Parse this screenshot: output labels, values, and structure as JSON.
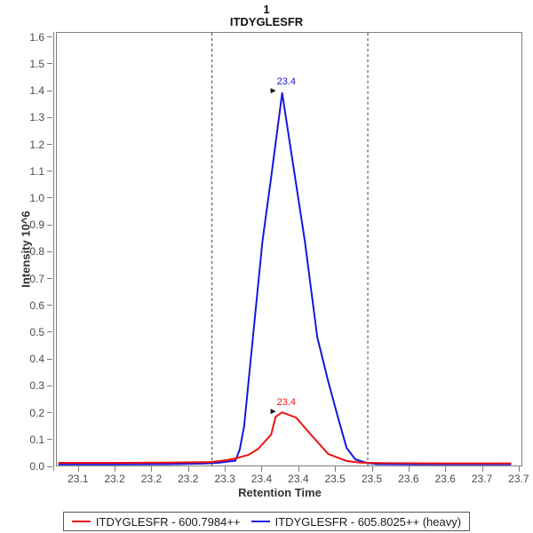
{
  "title": {
    "line1": "1",
    "line2": "ITDYGLESFR"
  },
  "colors": {
    "light_series": "#ee1111",
    "heavy_series": "#1616dd",
    "axis_line": "#7f7f7f",
    "tick_text": "#4a4a4a",
    "boundary_line": "#3a3a3a",
    "annotation_arrow": "#111111"
  },
  "legend": {
    "position": "bottom",
    "items": [
      {
        "label": "ITDYGLESFR - 600.7984++",
        "color": "#ee1111"
      },
      {
        "label": "ITDYGLESFR - 605.8025++ (heavy)",
        "color": "#1616dd"
      }
    ]
  },
  "chart_data": {
    "type": "line",
    "title": "1 ITDYGLESFR",
    "xlabel": "Retention Time",
    "ylabel": "Intensity 10^6",
    "xlim": [
      23.07,
      23.705
    ],
    "ylim": [
      0,
      1.619
    ],
    "grid": false,
    "x_ticks": [
      {
        "value": 23.1,
        "label": "23.1"
      },
      {
        "value": 23.15,
        "label": "23.2"
      },
      {
        "value": 23.2,
        "label": "23.2"
      },
      {
        "value": 23.25,
        "label": "23.2"
      },
      {
        "value": 23.3,
        "label": "23.3"
      },
      {
        "value": 23.35,
        "label": "23.4"
      },
      {
        "value": 23.4,
        "label": "23.4"
      },
      {
        "value": 23.45,
        "label": "23.5"
      },
      {
        "value": 23.5,
        "label": "23.5"
      },
      {
        "value": 23.55,
        "label": "23.6"
      },
      {
        "value": 23.6,
        "label": "23.6"
      },
      {
        "value": 23.65,
        "label": "23.7"
      },
      {
        "value": 23.7,
        "label": "23.7"
      }
    ],
    "y_ticks": [
      {
        "value": 0.0,
        "label": "0.0"
      },
      {
        "value": 0.1,
        "label": "0.1"
      },
      {
        "value": 0.2,
        "label": "0.2"
      },
      {
        "value": 0.3,
        "label": "0.3"
      },
      {
        "value": 0.4,
        "label": "0.4"
      },
      {
        "value": 0.5,
        "label": "0.5"
      },
      {
        "value": 0.6,
        "label": "0.6"
      },
      {
        "value": 0.7,
        "label": "0.7"
      },
      {
        "value": 0.8,
        "label": "0.8"
      },
      {
        "value": 0.9,
        "label": "0.9"
      },
      {
        "value": 1.0,
        "label": "1.0"
      },
      {
        "value": 1.1,
        "label": "1.1"
      },
      {
        "value": 1.2,
        "label": "1.2"
      },
      {
        "value": 1.3,
        "label": "1.3"
      },
      {
        "value": 1.4,
        "label": "1.4"
      },
      {
        "value": 1.5,
        "label": "1.5"
      },
      {
        "value": 1.6,
        "label": "1.6"
      }
    ],
    "boundaries": {
      "style": "dashed",
      "color": "#3a3a3a",
      "values": [
        23.282,
        23.495
      ]
    },
    "annotations": [
      {
        "text": "23.4",
        "x": 23.378,
        "y": 1.394,
        "series": 1
      },
      {
        "text": "23.4",
        "x": 23.378,
        "y": 0.199,
        "series": 0
      }
    ],
    "series": [
      {
        "name": "ITDYGLESFR - 600.7984++",
        "id": "light",
        "color": "#ee1111",
        "points": [
          [
            23.073,
            0.01
          ],
          [
            23.15,
            0.01
          ],
          [
            23.22,
            0.011
          ],
          [
            23.28,
            0.013
          ],
          [
            23.302,
            0.02
          ],
          [
            23.314,
            0.026
          ],
          [
            23.332,
            0.04
          ],
          [
            23.345,
            0.062
          ],
          [
            23.363,
            0.116
          ],
          [
            23.369,
            0.182
          ],
          [
            23.378,
            0.199
          ],
          [
            23.397,
            0.179
          ],
          [
            23.417,
            0.116
          ],
          [
            23.441,
            0.043
          ],
          [
            23.466,
            0.017
          ],
          [
            23.484,
            0.011
          ],
          [
            23.52,
            0.009
          ],
          [
            23.6,
            0.008
          ],
          [
            23.69,
            0.008
          ]
        ]
      },
      {
        "name": "ITDYGLESFR - 605.8025++ (heavy)",
        "id": "heavy",
        "color": "#1616dd",
        "points": [
          [
            23.073,
            0.004
          ],
          [
            23.15,
            0.004
          ],
          [
            23.22,
            0.005
          ],
          [
            23.27,
            0.007
          ],
          [
            23.29,
            0.01
          ],
          [
            23.302,
            0.014
          ],
          [
            23.314,
            0.018
          ],
          [
            23.32,
            0.06
          ],
          [
            23.326,
            0.149
          ],
          [
            23.332,
            0.314
          ],
          [
            23.351,
            0.838
          ],
          [
            23.363,
            1.079
          ],
          [
            23.378,
            1.394
          ],
          [
            23.393,
            1.126
          ],
          [
            23.409,
            0.838
          ],
          [
            23.426,
            0.48
          ],
          [
            23.441,
            0.314
          ],
          [
            23.454,
            0.182
          ],
          [
            23.466,
            0.066
          ],
          [
            23.478,
            0.023
          ],
          [
            23.493,
            0.01
          ],
          [
            23.508,
            0.005
          ],
          [
            23.56,
            0.004
          ],
          [
            23.62,
            0.004
          ],
          [
            23.69,
            0.004
          ]
        ]
      }
    ]
  }
}
